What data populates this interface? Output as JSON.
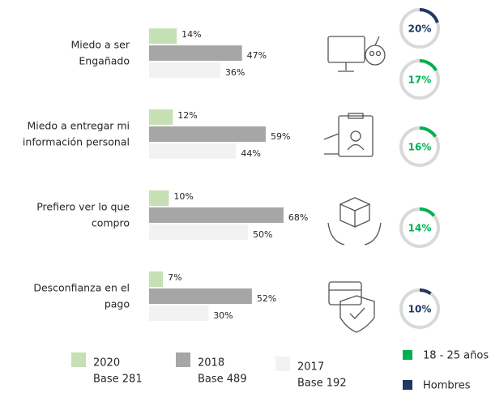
{
  "chart_data": {
    "type": "bar",
    "categories": [
      [
        "Miedo a ser",
        "Engañado"
      ],
      [
        "Miedo a entregar mi",
        "información personal"
      ],
      [
        "Prefiero ver lo que",
        "compro"
      ],
      [
        "Desconfianza en el",
        "pago"
      ]
    ],
    "series": [
      {
        "name": "2020",
        "base_label": "Base  281",
        "color": "#c5e0b4",
        "values": [
          14,
          12,
          10,
          7
        ],
        "value_labels": [
          "14%",
          "12%",
          "10%",
          "7%"
        ]
      },
      {
        "name": "2018",
        "base_label": "Base  489",
        "color": "#a6a6a6",
        "values": [
          47,
          59,
          68,
          52
        ],
        "value_labels": [
          "47%",
          "59%",
          "68%",
          "52%"
        ]
      },
      {
        "name": "2017",
        "base_label": "Base  192",
        "color": "#f2f2f2",
        "values": [
          36,
          44,
          50,
          30
        ],
        "value_labels": [
          "36%",
          "44%",
          "50%",
          "30%"
        ]
      }
    ],
    "gauge_groups": [
      {
        "name": "18 - 25 años",
        "color": "#00b050"
      },
      {
        "name": "Hombres",
        "color": "#1f3864"
      }
    ],
    "gauges": [
      [
        {
          "value": 20,
          "label": "20%",
          "group": 1
        },
        {
          "value": 17,
          "label": "17%",
          "group": 0
        }
      ],
      [
        {
          "value": 16,
          "label": "16%",
          "group": 0
        }
      ],
      [
        {
          "value": 14,
          "label": "14%",
          "group": 0
        }
      ],
      [
        {
          "value": 10,
          "label": "10%",
          "group": 1
        }
      ]
    ]
  }
}
